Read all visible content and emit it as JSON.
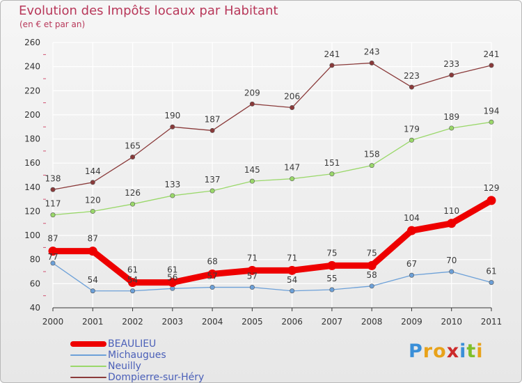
{
  "header": {
    "title": "Evolution des Impôts locaux par Habitant",
    "subtitle": "(en € et par an)"
  },
  "logo": {
    "text": "Proxiti",
    "letters": [
      {
        "char": "P",
        "color": "#3a8fd8"
      },
      {
        "char": "r",
        "color": "#e8a21a"
      },
      {
        "char": "o",
        "color": "#e8a21a"
      },
      {
        "char": "x",
        "color": "#cc2a2a"
      },
      {
        "char": "i",
        "color": "#3a8fd8"
      },
      {
        "char": "t",
        "color": "#7fbf2a"
      },
      {
        "char": "i",
        "color": "#e8a21a"
      }
    ]
  },
  "colors": {
    "title": "#b8385a",
    "axis": "#333333",
    "grid": "#ffffff",
    "tick_minor": "#d05070",
    "legend_text": "#4a5fb8"
  },
  "chart_data": {
    "type": "line",
    "title": "Evolution des Impôts locaux par Habitant",
    "subtitle": "(en € et par an)",
    "xlabel": "",
    "ylabel": "",
    "x": [
      2000,
      2001,
      2002,
      2003,
      2004,
      2005,
      2006,
      2007,
      2008,
      2009,
      2010,
      2011
    ],
    "ylim": [
      40,
      260
    ],
    "yticks": [
      40,
      60,
      80,
      100,
      120,
      140,
      160,
      180,
      200,
      220,
      240,
      260
    ],
    "grid": true,
    "legend_position": "bottom-left",
    "series": [
      {
        "name": "BEAULIEU",
        "color": "#ee0000",
        "values": [
          87,
          87,
          61,
          61,
          68,
          71,
          71,
          75,
          75,
          104,
          110,
          129
        ],
        "labels": [
          "87",
          "87",
          "61",
          "61",
          "68",
          "71",
          "71",
          "75",
          "75",
          "104",
          "110",
          "129"
        ]
      },
      {
        "name": "Michaugues",
        "color": "#6ca0d8",
        "values": [
          77,
          54,
          54,
          56,
          57,
          57,
          54,
          55,
          58,
          67,
          70,
          61
        ],
        "labels": [
          "77",
          "54",
          "54",
          "56",
          "57",
          "57",
          "54",
          "55",
          "58",
          "67",
          "70",
          "61"
        ]
      },
      {
        "name": "Neuilly",
        "color": "#9ad86a",
        "values": [
          117,
          120,
          126,
          133,
          137,
          145,
          147,
          151,
          158,
          179,
          189,
          194
        ],
        "labels": [
          "117",
          "120",
          "126",
          "133",
          "137",
          "145",
          "147",
          "151",
          "158",
          "179",
          "189",
          "194"
        ]
      },
      {
        "name": "Dompierre-sur-Héry",
        "color": "#8a3a3a",
        "values": [
          138,
          144,
          165,
          190,
          187,
          209,
          206,
          241,
          243,
          223,
          233,
          241
        ],
        "labels": [
          "138",
          "144",
          "165",
          "190",
          "187",
          "209",
          "206",
          "241",
          "243",
          "223",
          "233",
          "241"
        ]
      }
    ]
  }
}
